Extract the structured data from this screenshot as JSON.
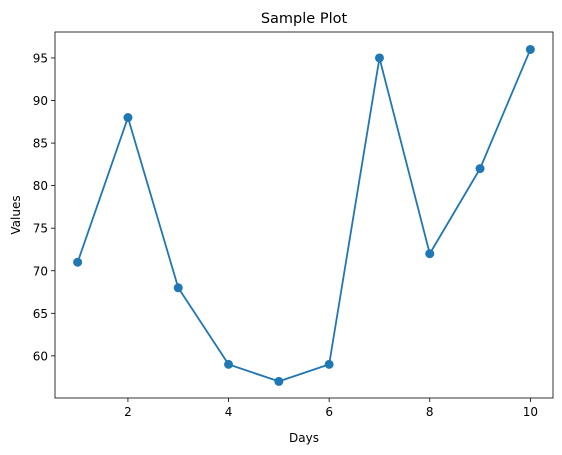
{
  "chart_data": {
    "type": "line",
    "title": "Sample Plot",
    "xlabel": "Days",
    "ylabel": "Values",
    "xlim": [
      0.55,
      10.45
    ],
    "ylim": [
      55.05,
      98.05
    ],
    "xticks": [
      2,
      4,
      6,
      8,
      10
    ],
    "yticks": [
      60,
      65,
      70,
      75,
      80,
      85,
      90,
      95
    ],
    "grid": false,
    "series": [
      {
        "x": [
          1,
          2,
          3,
          4,
          5,
          6,
          7,
          8,
          9,
          10
        ],
        "y": [
          71,
          88,
          68,
          59,
          57,
          59,
          95,
          72,
          82,
          96
        ],
        "color": "#1f77b4",
        "marker": "circle"
      }
    ]
  }
}
